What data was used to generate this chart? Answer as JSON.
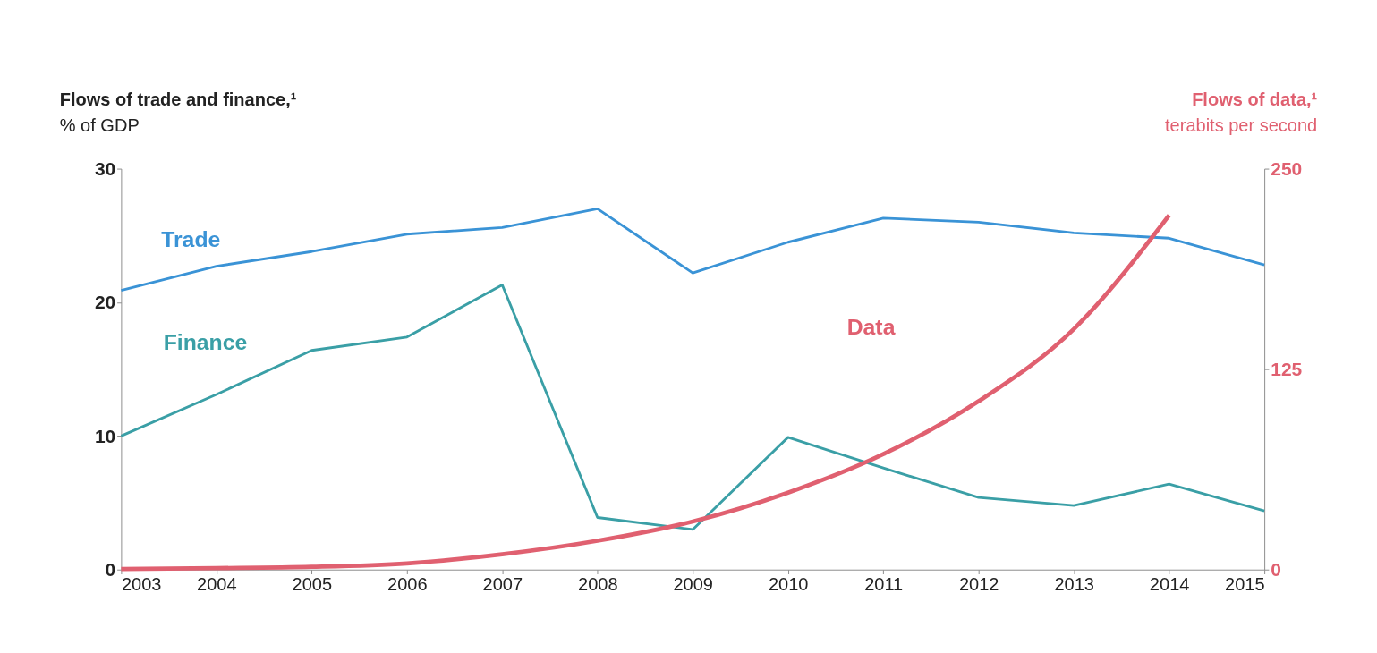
{
  "chart_data": {
    "type": "line",
    "ylabel": "Flows of trade and finance,¹\n% of GDP",
    "y2label": "Flows of data,¹\nterabits per second",
    "x": [
      2003,
      2004,
      2005,
      2006,
      2007,
      2008,
      2009,
      2010,
      2011,
      2012,
      2013,
      2014,
      2015
    ],
    "xlim": [
      2003,
      2015
    ],
    "xticks": [
      2003,
      2004,
      2005,
      2006,
      2007,
      2008,
      2009,
      2010,
      2011,
      2012,
      2013,
      2014,
      2015
    ],
    "ylim": [
      0,
      30
    ],
    "yticks": [
      0,
      10,
      20,
      30
    ],
    "y2lim": [
      0,
      250
    ],
    "y2ticks": [
      0,
      125,
      250
    ],
    "grid": false,
    "legend": false,
    "marker": "none",
    "line_style": "solid",
    "series": [
      {
        "name": "Trade",
        "color": "#3a93d6",
        "values": [
          20.9,
          22.7,
          23.8,
          25.1,
          25.6,
          27.0,
          22.2,
          24.5,
          26.3,
          26.0,
          25.2,
          24.8,
          22.8
        ]
      },
      {
        "name": "Finance",
        "color": "#3a9fa6",
        "values": [
          10.0,
          13.1,
          16.4,
          17.4,
          21.3,
          3.9,
          3.0,
          9.9,
          7.6,
          5.4,
          4.8,
          6.4,
          4.4
        ]
      },
      {
        "name": "Data",
        "color": "#e06070",
        "axis": "y2",
        "values": [
          0.4,
          0.9,
          1.7,
          3.9,
          9.6,
          18,
          30,
          48,
          72,
          105,
          150,
          221,
          null
        ]
      }
    ]
  }
}
